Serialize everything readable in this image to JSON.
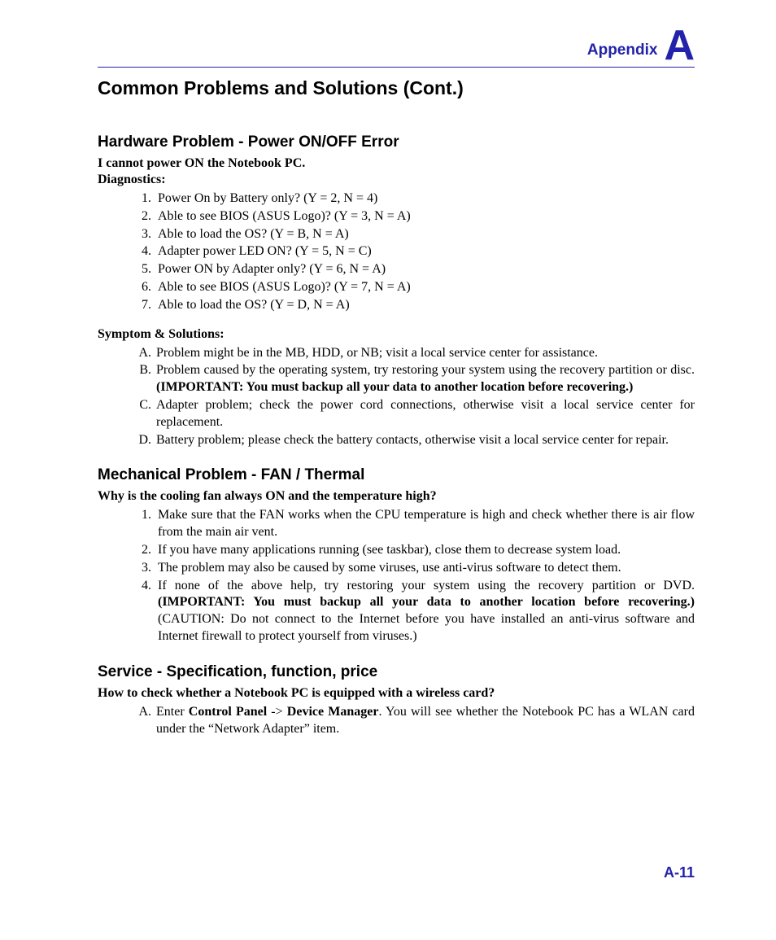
{
  "colors": {
    "accent": "#2222aa",
    "text": "#000000",
    "background": "#ffffff"
  },
  "typography": {
    "body_family": "Times New Roman",
    "heading_family": "Arial",
    "body_size_pt": 16,
    "main_title_size_pt": 23,
    "section_title_size_pt": 19,
    "appendix_label_size_pt": 19,
    "appendix_letter_size_pt": 52,
    "page_num_size_pt": 18
  },
  "header": {
    "appendix_label": "Appendix",
    "appendix_letter": "A"
  },
  "main_title": "Common Problems and Solutions (Cont.)",
  "section1": {
    "title": "Hardware Problem - Power ON/OFF Error",
    "intro": "I cannot power ON the Notebook PC.",
    "diag_label": "Diagnostics:",
    "diag_items": [
      "Power On by Battery only? (Y = 2, N = 4)",
      "Able to see BIOS (ASUS Logo)? (Y = 3, N = A)",
      "Able to load the OS? (Y = B, N = A)",
      "Adapter power LED ON? (Y = 5, N = C)",
      "Power ON by Adapter only? (Y = 6, N = A)",
      "Able to see BIOS (ASUS Logo)? (Y = 7, N = A)",
      "Able to load the OS? (Y = D, N = A)"
    ],
    "sol_label": "Symptom & Solutions:",
    "sol_items": {
      "a": "Problem might be in the MB, HDD, or NB; visit a local service center for assistance.",
      "b_pre": "Problem caused by the operating system, try restoring your system using the recovery partition or disc. ",
      "b_bold": "(IMPORTANT: You must backup all your data to another location before recovering.)",
      "c": "Adapter problem; check the power cord connections, otherwise visit a local service center for replacement.",
      "d": "Battery problem; please check the battery contacts, otherwise visit a local service center for repair."
    }
  },
  "section2": {
    "title": "Mechanical Problem - FAN / Thermal",
    "intro": "Why is the cooling fan always ON and the temperature high?",
    "items": {
      "i1": "Make sure that the FAN works when the CPU temperature is high and check whether there is air flow from the main air vent.",
      "i2": "If you have many applications running (see taskbar), close them to decrease system load.",
      "i3": "The problem may also be caused by some viruses, use anti-virus software to detect them.",
      "i4_pre": "If none of the above help, try restoring your system using the recovery partition or DVD. ",
      "i4_bold": "(IMPORTANT: You must backup all your data to another location before recovering.)",
      "i4_post": " (CAUTION: Do not connect to the Internet before you have installed an anti-virus software and Internet firewall to protect yourself from viruses.)"
    }
  },
  "section3": {
    "title": "Service - Specification, function, price",
    "intro": "How to check whether a Notebook PC is equipped with a wireless card?",
    "item": {
      "pre": "Enter ",
      "b1": "Control Panel",
      "mid": " -> ",
      "b2": "Device Manager",
      "post": ". You will see whether the Notebook PC has a WLAN card under the “Network Adapter” item."
    }
  },
  "page_number": "A-11"
}
